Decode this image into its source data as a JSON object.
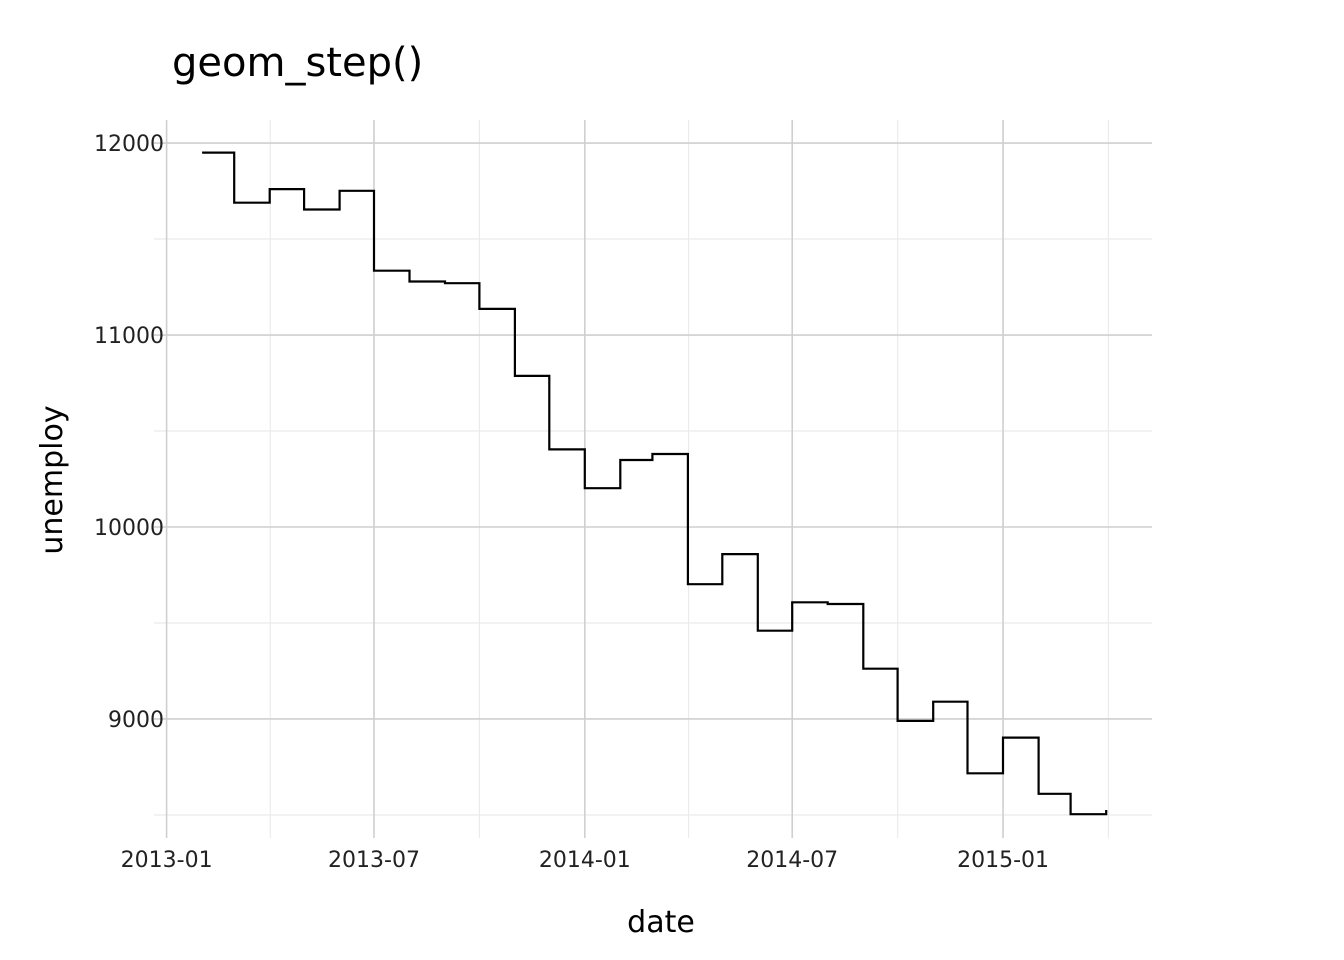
{
  "chart_data": {
    "type": "line",
    "style": "step",
    "title": "geom_step()",
    "xlabel": "date",
    "ylabel": "unemploy",
    "grid": true,
    "xlim": [
      "2012-12-21",
      "2015-05-11"
    ],
    "ylim": [
      8380,
      12120
    ],
    "x_ticks": [
      "2013-01",
      "2013-07",
      "2014-01",
      "2014-07",
      "2015-01"
    ],
    "y_ticks": [
      9000,
      10000,
      11000,
      12000
    ],
    "line_color": "#000000",
    "series": [
      {
        "x": [
          "2013-02-01",
          "2013-03-01",
          "2013-04-01",
          "2013-05-01",
          "2013-06-01",
          "2013-07-01",
          "2013-08-01",
          "2013-09-01",
          "2013-10-01",
          "2013-11-01",
          "2013-12-01",
          "2014-01-01",
          "2014-02-01",
          "2014-03-01",
          "2014-04-01",
          "2014-05-01",
          "2014-06-01",
          "2014-07-01",
          "2014-08-01",
          "2014-09-01",
          "2014-10-01",
          "2014-11-01",
          "2014-12-01",
          "2015-01-01",
          "2015-02-01",
          "2015-03-01",
          "2015-04-01"
        ],
        "values": [
          11950,
          11689,
          11760,
          11654,
          11751,
          11335,
          11279,
          11270,
          11136,
          10787,
          10404,
          10202,
          10349,
          10380,
          9702,
          9859,
          9460,
          9608,
          9599,
          9262,
          8990,
          9090,
          8717,
          8903,
          8610,
          8504,
          8526
        ]
      }
    ]
  }
}
